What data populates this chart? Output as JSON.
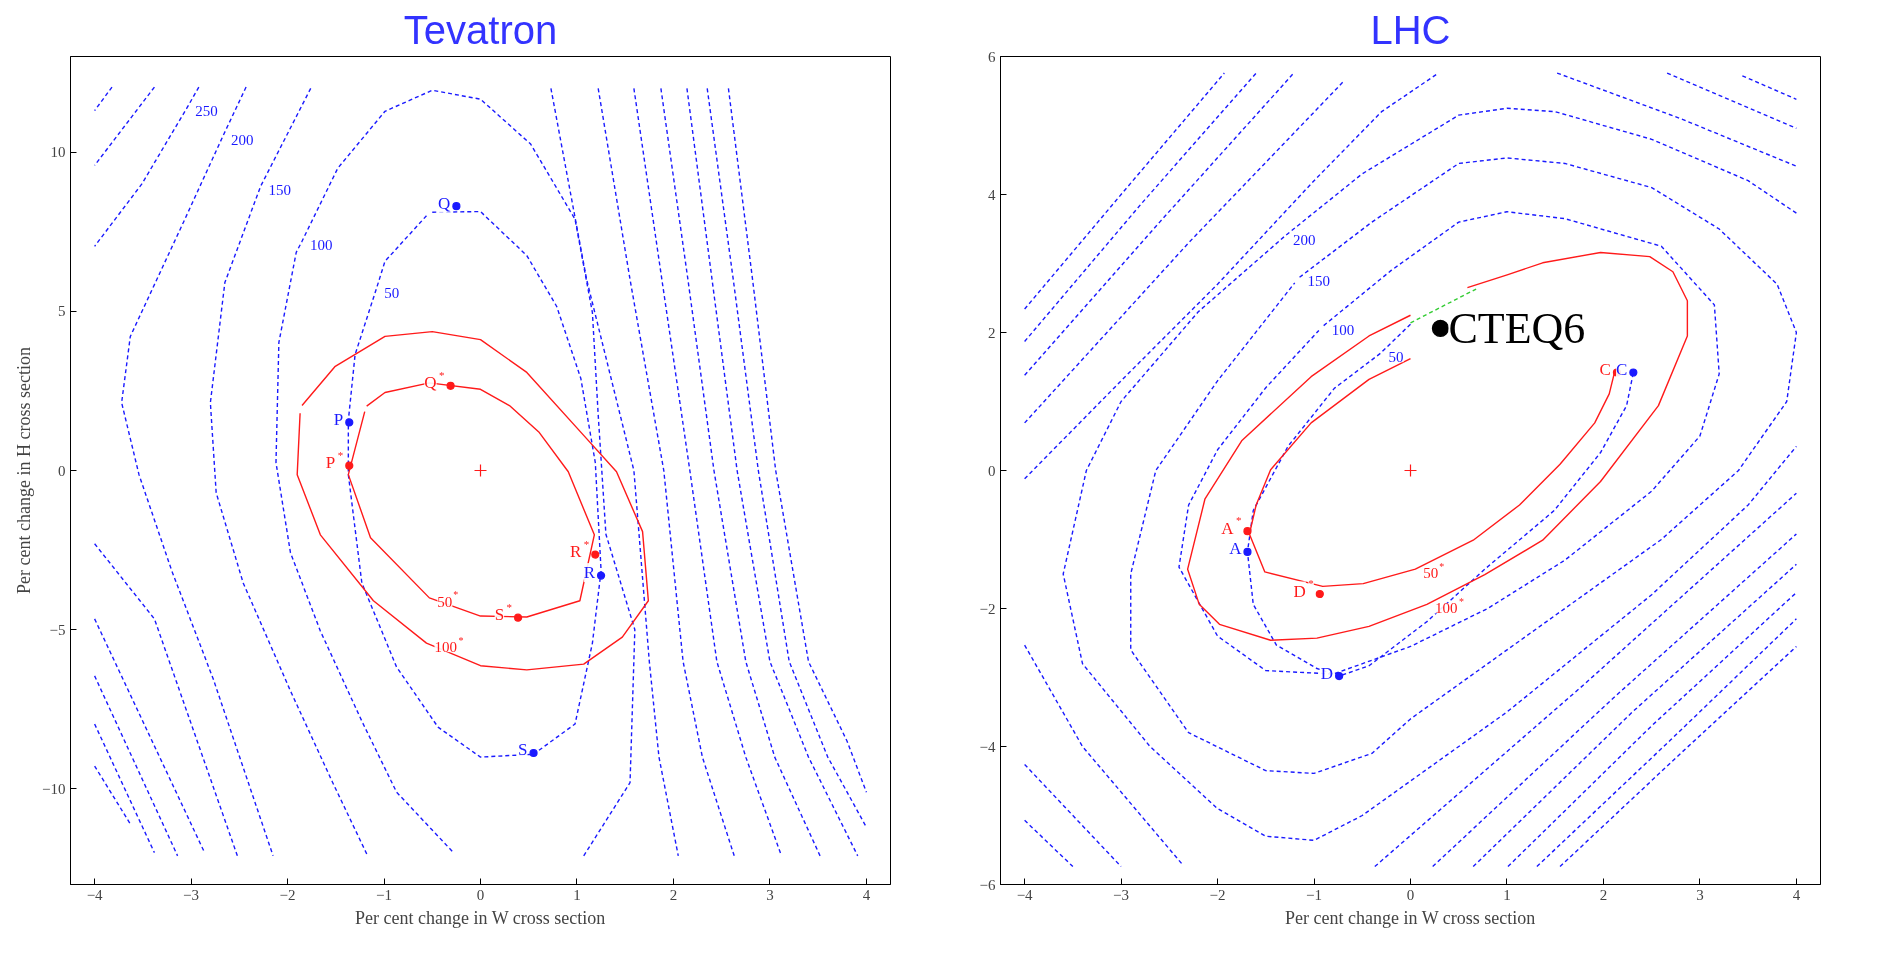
{
  "chart_data": [
    {
      "type": "line",
      "title": "Tevatron",
      "xlabel": "Per cent change in W cross section",
      "ylabel": "Per cent change in H cross section",
      "xlim": [
        -4.25,
        4.25
      ],
      "ylim": [
        -13,
        13
      ],
      "xticks": [
        -4,
        -3,
        -2,
        -1,
        0,
        1,
        2,
        3,
        4
      ],
      "yticks": [
        -10,
        -5,
        0,
        5,
        10
      ],
      "grid": false,
      "marker": "none",
      "line_style": "dashed",
      "annotations": [
        {
          "text": "250",
          "x": -3.04,
          "y": 11.4
        },
        {
          "text": "200",
          "x": -2.67,
          "y": 10.5
        },
        {
          "text": "150",
          "x": -2.28,
          "y": 8.92
        },
        {
          "text": "100",
          "x": -1.85,
          "y": 7.2
        },
        {
          "text": "50",
          "x": -1.08,
          "y": 5.7
        },
        {
          "text": "50$^{*}$",
          "x": -0.53,
          "y": -4.0
        },
        {
          "text": "100$^{*}$",
          "x": -0.56,
          "y": -5.42
        }
      ],
      "series": [
        {
          "color": "#1a1aff",
          "x": [
            -3.82,
            -4.0
          ],
          "values": [
            12.04,
            11.3
          ]
        },
        {
          "color": "#1a1aff",
          "x": [
            -3.38,
            -4.0
          ],
          "values": [
            12.04,
            9.58
          ]
        },
        {
          "color": "#1a1aff",
          "x": [
            -2.92,
            -3.04,
            -3.51,
            -4.0
          ],
          "values": [
            12.04,
            11.4,
            9.0,
            7.04
          ]
        },
        {
          "color": "#1a1aff",
          "x": [
            -2.43,
            -2.67,
            -3.08,
            -3.63,
            -3.72,
            -3.54,
            -3.2,
            -2.77,
            -2.15
          ],
          "values": [
            12.04,
            10.5,
            7.79,
            4.21,
            2.13,
            -0.13,
            -3.15,
            -6.55,
            -12.1
          ]
        },
        {
          "color": "#1a1aff",
          "x": [
            -1.76,
            -2.28,
            -2.65,
            -2.8,
            -2.74,
            -2.46,
            -1.97,
            -1.54,
            -1.17
          ],
          "values": [
            12.0,
            8.92,
            5.9,
            2.13,
            -0.7,
            -3.53,
            -6.92,
            -9.75,
            -12.1
          ]
        },
        {
          "color": "#1a1aff",
          "x": [
            1.07,
            1.55,
            1.6,
            1.3,
            1.22,
            1.16,
            0.98,
            0.52,
            0.0,
            -0.5,
            -0.99,
            -1.48,
            -1.85,
            -1.91,
            -2.09,
            -2.12,
            -1.97,
            -1.66,
            -1.23,
            -0.87,
            -0.28
          ],
          "values": [
            -12.1,
            -9.8,
            -5.0,
            -2.0,
            1.75,
            4.96,
            7.89,
            10.25,
            11.66,
            11.94,
            11.28,
            9.49,
            7.2,
            6.85,
            4.02,
            0.25,
            -2.58,
            -5.04,
            -7.87,
            -10.1,
            -12.0
          ]
        },
        {
          "color": "#1a1aff",
          "x": [
            -0.5,
            0.0,
            0.48,
            0.79,
            1.04,
            1.19,
            1.25,
            1.16,
            0.98,
            0.55,
            0.0,
            -0.44,
            -0.87,
            -1.23,
            -1.37,
            -1.37,
            -1.3,
            -1.08,
            -0.99,
            -0.56
          ],
          "values": [
            8.11,
            8.13,
            6.75,
            5.15,
            2.89,
            0.25,
            -3.15,
            -5.42,
            -7.96,
            -8.91,
            -9.0,
            -8.06,
            -6.17,
            -3.53,
            -0.13,
            1.57,
            3.64,
            5.7,
            6.57,
            8.0
          ]
        },
        {
          "color": "#1a1aff",
          "x": [
            0.73,
            1.1,
            1.59,
            1.75,
            1.85,
            2.05
          ],
          "values": [
            12,
            6,
            0,
            -6,
            -9,
            -12.1
          ]
        },
        {
          "color": "#1a1aff",
          "x": [
            1.22,
            1.55,
            1.9,
            2.1,
            2.3,
            2.63
          ],
          "values": [
            12,
            6,
            0,
            -6,
            -9,
            -12.1
          ]
        },
        {
          "color": "#1a1aff",
          "x": [
            1.59,
            1.88,
            2.17,
            2.45,
            2.75,
            3.12
          ],
          "values": [
            12,
            6,
            0,
            -6,
            -9,
            -12.1
          ]
        },
        {
          "color": "#1a1aff",
          "x": [
            1.87,
            2.15,
            2.42,
            2.75,
            3.05,
            3.52
          ],
          "values": [
            12,
            6,
            0,
            -6,
            -9,
            -12.1
          ]
        },
        {
          "color": "#1a1aff",
          "x": [
            2.14,
            2.4,
            2.66,
            3.0,
            3.4,
            3.91
          ],
          "values": [
            12,
            6,
            0,
            -6,
            -9,
            -12.1
          ]
        },
        {
          "color": "#1a1aff",
          "x": [
            2.35,
            2.62,
            2.88,
            3.2,
            3.6,
            4.0
          ],
          "values": [
            12,
            6,
            0,
            -6,
            -9,
            -11.2
          ]
        },
        {
          "color": "#1a1aff",
          "x": [
            2.57,
            2.82,
            3.06,
            3.4,
            3.8,
            4.0
          ],
          "values": [
            12,
            6,
            0,
            -6,
            -8.5,
            -10.1
          ]
        },
        {
          "color": "#1a1aff",
          "x": [
            -4.0,
            -3.38,
            -2.52
          ],
          "values": [
            -2.3,
            -4.66,
            -12.1
          ]
        },
        {
          "color": "#1a1aff",
          "x": [
            -4.0,
            -2.86
          ],
          "values": [
            -4.66,
            -12.0
          ]
        },
        {
          "color": "#1a1aff",
          "x": [
            -4.0,
            -3.14
          ],
          "values": [
            -6.45,
            -12.1
          ]
        },
        {
          "color": "#1a1aff",
          "x": [
            -4.0,
            -3.38
          ],
          "values": [
            -7.96,
            -12.0
          ]
        },
        {
          "color": "#1a1aff",
          "x": [
            -4.0,
            -3.63
          ],
          "values": [
            -9.28,
            -11.1
          ]
        },
        {
          "color": "#ff1a1a",
          "line_style": "solid",
          "x": [
            -1.18,
            -0.99,
            -0.53,
            0.0,
            0.3,
            0.61,
            0.91,
            1.18,
            1.03,
            0.48,
            0.0,
            -0.53,
            -1.14,
            -1.37,
            -1.2
          ],
          "values": [
            2.02,
            2.45,
            2.75,
            2.55,
            2.04,
            1.19,
            -0.04,
            -2.02,
            -4.09,
            -4.6,
            -4.57,
            -4.0,
            -2.11,
            -0.13,
            1.85
          ]
        },
        {
          "color": "#ff1a1a",
          "line_style": "solid",
          "x": [
            -1.85,
            -1.51,
            -0.99,
            -0.5,
            0.0,
            0.48,
            1.1,
            1.41,
            1.68,
            1.74,
            1.47,
            1.07,
            0.48,
            0.0,
            -0.56,
            -1.11,
            -1.66,
            -1.9,
            -1.87
          ],
          "values": [
            2.04,
            3.26,
            4.21,
            4.36,
            4.11,
            3.08,
            1.0,
            -0.04,
            -1.92,
            -4.09,
            -5.23,
            -6.08,
            -6.26,
            -6.13,
            -5.42,
            -4.09,
            -2.02,
            -0.13,
            1.8
          ]
        },
        {
          "type": "scatter",
          "marker": "circle",
          "color": "#1a1aff",
          "x": [
            -1.36,
            -0.25,
            1.25,
            0.55
          ],
          "values": [
            1.51,
            8.3,
            -3.3,
            -8.87
          ],
          "value_labels": [
            "P",
            "Q",
            "R",
            "S"
          ]
        },
        {
          "type": "scatter",
          "marker": "circle",
          "color": "#ff1a1a",
          "x": [
            -1.36,
            -0.31,
            1.19,
            0.39
          ],
          "values": [
            0.15,
            2.66,
            -2.64,
            -4.62
          ],
          "value_labels": [
            "P$^{*}$",
            "Q$^{*}$",
            "R$^{*}$",
            "S$^{*}$"
          ]
        },
        {
          "type": "scatter",
          "marker": "cross",
          "color": "#ff1a1a",
          "x": [
            0.0
          ],
          "values": [
            0.0
          ]
        }
      ]
    },
    {
      "type": "line",
      "title": "LHC",
      "xlabel": "Per cent change in W cross section",
      "xlim": [
        -4.25,
        4.25
      ],
      "ylim": [
        -6,
        6
      ],
      "xticks": [
        -4,
        -3,
        -2,
        -1,
        0,
        1,
        2,
        3,
        4
      ],
      "yticks": [
        -6,
        -4,
        -2,
        0,
        2,
        4,
        6
      ],
      "grid": false,
      "marker": "none",
      "line_style": "dashed",
      "annotations": [
        {
          "text": "200",
          "x": -1.3,
          "y": 3.4
        },
        {
          "text": "150",
          "x": -1.15,
          "y": 2.8
        },
        {
          "text": "100",
          "x": -0.9,
          "y": 2.1
        },
        {
          "text": "50",
          "x": -0.31,
          "y": 1.7
        },
        {
          "text": "50$^{*}$",
          "x": 0.05,
          "y": -1.43
        },
        {
          "text": "100$^{*}$",
          "x": 0.17,
          "y": -1.94
        }
      ],
      "series": [
        {
          "color": "#1a1aff",
          "x": [
            -4.0,
            -3.0,
            -2.0,
            -1.0,
            -0.3,
            0.29
          ],
          "values": [
            -0.12,
            1.3,
            2.7,
            4.2,
            5.2,
            5.76
          ]
        },
        {
          "color": "#1a1aff",
          "x": [
            -4.0,
            -2.3,
            -0.7
          ],
          "values": [
            0.69,
            3.3,
            5.63
          ]
        },
        {
          "color": "#1a1aff",
          "x": [
            -4.0,
            -2.6,
            -1.21
          ],
          "values": [
            1.38,
            3.6,
            5.76
          ]
        },
        {
          "color": "#1a1aff",
          "x": [
            -4.0,
            -2.8,
            -1.6
          ],
          "values": [
            1.87,
            3.85,
            5.76
          ]
        },
        {
          "color": "#1a1aff",
          "x": [
            -4.0,
            -3.0,
            -1.93
          ],
          "values": [
            2.34,
            4.0,
            5.76
          ]
        },
        {
          "color": "#1a1aff",
          "x": [
            1.52,
            2.8,
            4.0
          ],
          "values": [
            5.76,
            5.1,
            4.41
          ]
        },
        {
          "color": "#1a1aff",
          "x": [
            2.66,
            4.0
          ],
          "values": [
            5.76,
            4.96
          ]
        },
        {
          "color": "#1a1aff",
          "x": [
            3.44,
            4.0
          ],
          "values": [
            5.72,
            5.38
          ]
        },
        {
          "color": "#1a1aff",
          "x": [
            4.0,
            3.5,
            2.5,
            1.5,
            1.0,
            0.5,
            -0.5,
            -1.3,
            -2.2,
            -3.0,
            -3.36,
            -3.6,
            -3.4,
            -2.7,
            -2.0,
            -1.5,
            -1.0,
            -0.5,
            0.0,
            1.0,
            2.5,
            3.5,
            4.0
          ],
          "values": [
            3.73,
            4.2,
            4.8,
            5.2,
            5.25,
            5.15,
            4.3,
            3.4,
            2.3,
            1.0,
            0.0,
            -1.5,
            -2.8,
            -4.0,
            -4.9,
            -5.3,
            -5.36,
            -5.0,
            -4.5,
            -3.5,
            -1.8,
            -0.5,
            0.35
          ]
        },
        {
          "color": "#1a1aff",
          "x": [
            -1.15,
            -0.4,
            0.5,
            1.0,
            1.6,
            2.5,
            3.2,
            3.8,
            4.0,
            3.9,
            3.4,
            2.6,
            1.6,
            0.6,
            0.0,
            -0.4,
            -1.0,
            -1.5,
            -2.3,
            -2.9,
            -2.9,
            -2.64,
            -2.0,
            -1.2
          ],
          "values": [
            2.8,
            3.6,
            4.45,
            4.53,
            4.45,
            4.1,
            3.5,
            2.7,
            2.0,
            1.0,
            0.0,
            -1.0,
            -2.0,
            -3.0,
            -3.6,
            -4.1,
            -4.39,
            -4.35,
            -3.8,
            -2.6,
            -1.5,
            0.0,
            1.3,
            2.72
          ]
        },
        {
          "color": "#1a1aff",
          "x": [
            -0.9,
            -0.2,
            0.5,
            1.0,
            1.6,
            2.6,
            3.15,
            3.2,
            3.0,
            2.5,
            1.6,
            0.8,
            0.0,
            -0.8,
            -1.5,
            -2.0,
            -2.4,
            -2.3,
            -2.0,
            -1.5,
            -0.95
          ],
          "values": [
            2.1,
            2.9,
            3.6,
            3.75,
            3.65,
            3.25,
            2.4,
            1.4,
            0.5,
            -0.3,
            -1.3,
            -2.0,
            -2.55,
            -2.95,
            -2.9,
            -2.4,
            -1.4,
            -0.5,
            0.3,
            1.2,
            2.03
          ]
        },
        {
          "color": "#1a1aff",
          "x": [
            0.0,
            -0.31,
            -0.79,
            -1.27,
            -1.63,
            -1.69,
            -1.63,
            -1.39,
            -0.97,
            -0.74,
            -0.43,
            0.17,
            0.77,
            1.49,
            1.97,
            2.24,
            2.31
          ],
          "values": [
            2.12,
            1.7,
            1.19,
            0.35,
            -0.58,
            -1.18,
            -1.94,
            -2.53,
            -2.87,
            -2.98,
            -2.83,
            -2.19,
            -1.43,
            -0.58,
            0.26,
            0.94,
            1.42
          ]
        },
        {
          "color": "#1a1aff",
          "x": [
            -0.37,
            1.8,
            4.0
          ],
          "values": [
            -5.74,
            -3.1,
            -0.33
          ]
        },
        {
          "color": "#1a1aff",
          "x": [
            0.23,
            2.1,
            4.0
          ],
          "values": [
            -5.74,
            -3.3,
            -0.92
          ]
        },
        {
          "color": "#1a1aff",
          "x": [
            0.65,
            2.3,
            4.0
          ],
          "values": [
            -5.74,
            -3.5,
            -1.36
          ]
        },
        {
          "color": "#1a1aff",
          "x": [
            1.01,
            2.5,
            4.0
          ],
          "values": [
            -5.74,
            -3.7,
            -1.77
          ]
        },
        {
          "color": "#1a1aff",
          "x": [
            1.31,
            2.7,
            4.0
          ],
          "values": [
            -5.74,
            -3.9,
            -2.15
          ]
        },
        {
          "color": "#1a1aff",
          "x": [
            1.55,
            2.8,
            4.0
          ],
          "values": [
            -5.74,
            -4.1,
            -2.55
          ]
        },
        {
          "color": "#1a1aff",
          "x": [
            -4.0,
            -3.4,
            -2.37
          ],
          "values": [
            -2.53,
            -4.0,
            -5.7
          ]
        },
        {
          "color": "#1a1aff",
          "x": [
            -4.0,
            -3.0
          ],
          "values": [
            -4.26,
            -5.74
          ]
        },
        {
          "color": "#1a1aff",
          "x": [
            -4.0,
            -3.5
          ],
          "values": [
            -5.07,
            -5.74
          ]
        },
        {
          "color": "#33cc33",
          "x": [
            0.0,
            0.68
          ],
          "values": [
            2.14,
            2.63
          ]
        },
        {
          "color": "#ff1a1a",
          "line_style": "solid",
          "x": [
            0.0,
            -0.43,
            -1.03,
            -1.45,
            -1.6,
            -1.67,
            -1.51,
            -0.91,
            -0.49,
            0.05,
            0.65,
            1.13,
            1.55,
            1.91,
            2.06,
            2.12
          ],
          "values": [
            1.62,
            1.32,
            0.69,
            0.01,
            -0.5,
            -0.92,
            -1.47,
            -1.68,
            -1.64,
            -1.43,
            -1.01,
            -0.5,
            0.09,
            0.69,
            1.11,
            1.45
          ]
        },
        {
          "color": "#ff1a1a",
          "line_style": "solid",
          "x": [
            0.0,
            -0.43,
            -1.03,
            -1.75,
            -2.13,
            -2.31,
            -2.19,
            -1.98,
            -1.45,
            -0.97,
            -0.43,
            0.17,
            0.77,
            1.37,
            1.97,
            2.57,
            2.87,
            2.87,
            2.72,
            2.48,
            1.97,
            1.37,
            1.01,
            0.59
          ],
          "values": [
            2.25,
            1.95,
            1.36,
            0.43,
            -0.41,
            -1.43,
            -1.94,
            -2.23,
            -2.46,
            -2.43,
            -2.26,
            -1.94,
            -1.51,
            -1.01,
            -0.16,
            0.94,
            1.95,
            2.46,
            2.88,
            3.1,
            3.16,
            3.01,
            2.84,
            2.65
          ]
        },
        {
          "type": "scatter",
          "marker": "circle",
          "color": "#1a1aff",
          "x": [
            -1.69,
            -0.74,
            2.31
          ],
          "values": [
            -1.18,
            -2.98,
            1.42
          ],
          "value_labels": [
            "A",
            "D",
            "C"
          ]
        },
        {
          "type": "scatter",
          "marker": "circle",
          "color": "#ff1a1a",
          "x": [
            -1.69,
            -0.94,
            2.14
          ],
          "values": [
            -0.88,
            -1.79,
            1.42
          ],
          "value_labels": [
            "A$^{*}$",
            "D$^{*}$",
            "C"
          ]
        },
        {
          "type": "scatter",
          "marker": "circle",
          "color": "#000000",
          "x": [
            0.31
          ],
          "values": [
            2.06
          ],
          "value_labels": [
            "CTEQ6"
          ]
        },
        {
          "type": "scatter",
          "marker": "cross",
          "color": "#ff1a1a",
          "x": [
            0.0
          ],
          "values": [
            0.0
          ]
        }
      ]
    }
  ]
}
